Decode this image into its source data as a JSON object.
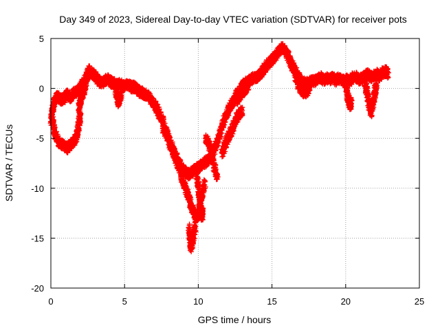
{
  "chart_data": {
    "type": "scatter",
    "title": "Day 349 of 2023, Sidereal Day-to-day VTEC variation (SDTVAR) for receiver pots",
    "xlabel": "GPS time / hours",
    "ylabel": "SDTVAR / TECUs",
    "xlim": [
      0,
      25
    ],
    "ylim": [
      -20,
      5
    ],
    "xticks": [
      "0",
      "5",
      "10",
      "15",
      "20",
      "25"
    ],
    "yticks": [
      "5",
      "0",
      "-5",
      "-10",
      "-15",
      "-20"
    ],
    "grid": true,
    "marker": "+",
    "series": [
      {
        "name": "SDTVAR",
        "color": "#ff0000",
        "trace": [
          [
            0.0,
            -3.2
          ],
          [
            0.1,
            -2.2
          ],
          [
            0.2,
            -1.6
          ],
          [
            0.3,
            -1.0
          ],
          [
            0.5,
            -0.8
          ],
          [
            0.7,
            -1.2
          ],
          [
            0.9,
            -1.0
          ],
          [
            1.1,
            -0.6
          ],
          [
            1.3,
            -0.9
          ],
          [
            1.5,
            -0.5
          ],
          [
            1.7,
            -0.4
          ],
          [
            1.9,
            -0.2
          ],
          [
            2.1,
            0.3
          ],
          [
            2.3,
            0.8
          ],
          [
            2.5,
            1.2
          ],
          [
            2.7,
            1.6
          ],
          [
            2.9,
            1.4
          ],
          [
            3.1,
            1.0
          ],
          [
            3.3,
            0.7
          ],
          [
            3.5,
            0.5
          ],
          [
            3.7,
            0.8
          ],
          [
            3.9,
            0.9
          ],
          [
            4.1,
            0.6
          ],
          [
            4.3,
            0.5
          ],
          [
            4.5,
            0.3
          ],
          [
            4.7,
            0.5
          ],
          [
            4.9,
            0.2
          ],
          [
            5.1,
            0.4
          ],
          [
            5.3,
            0.3
          ],
          [
            5.5,
            0.1
          ],
          [
            5.7,
            0.2
          ],
          [
            5.9,
            -0.2
          ],
          [
            6.1,
            -0.4
          ],
          [
            6.3,
            -0.5
          ],
          [
            6.5,
            -0.7
          ],
          [
            6.7,
            -0.9
          ],
          [
            6.9,
            -1.4
          ],
          [
            7.1,
            -1.8
          ],
          [
            7.3,
            -2.4
          ],
          [
            7.5,
            -3.0
          ],
          [
            7.7,
            -3.8
          ],
          [
            7.9,
            -4.6
          ],
          [
            8.1,
            -5.4
          ],
          [
            8.3,
            -6.2
          ],
          [
            8.5,
            -6.8
          ],
          [
            8.7,
            -7.4
          ],
          [
            8.9,
            -8.0
          ],
          [
            9.1,
            -8.3
          ],
          [
            9.3,
            -8.6
          ],
          [
            9.5,
            -8.5
          ],
          [
            9.7,
            -8.2
          ],
          [
            9.9,
            -8.0
          ],
          [
            10.1,
            -7.8
          ],
          [
            10.3,
            -7.6
          ],
          [
            10.5,
            -7.4
          ],
          [
            10.7,
            -7.1
          ],
          [
            10.9,
            -6.7
          ],
          [
            11.1,
            -6.1
          ],
          [
            11.3,
            -5.3
          ],
          [
            11.5,
            -4.4
          ],
          [
            11.7,
            -3.5
          ],
          [
            11.9,
            -2.7
          ],
          [
            12.1,
            -2.0
          ],
          [
            12.3,
            -1.5
          ],
          [
            12.5,
            -1.0
          ],
          [
            12.7,
            -0.4
          ],
          [
            12.9,
            0.0
          ],
          [
            13.1,
            0.4
          ],
          [
            13.3,
            0.6
          ],
          [
            13.5,
            0.8
          ],
          [
            13.7,
            1.0
          ],
          [
            13.9,
            1.1
          ],
          [
            14.1,
            1.3
          ],
          [
            14.3,
            1.6
          ],
          [
            14.5,
            2.0
          ],
          [
            14.7,
            2.4
          ],
          [
            14.9,
            2.7
          ],
          [
            15.1,
            3.0
          ],
          [
            15.3,
            3.4
          ],
          [
            15.5,
            3.8
          ],
          [
            15.7,
            4.1
          ],
          [
            15.9,
            3.8
          ],
          [
            16.1,
            3.2
          ],
          [
            16.3,
            2.5
          ],
          [
            16.5,
            1.9
          ],
          [
            16.7,
            1.4
          ],
          [
            16.9,
            0.9
          ],
          [
            17.1,
            0.6
          ],
          [
            17.3,
            0.5
          ],
          [
            17.5,
            0.6
          ],
          [
            17.7,
            0.8
          ],
          [
            17.9,
            0.7
          ],
          [
            18.1,
            0.9
          ],
          [
            18.3,
            1.1
          ],
          [
            18.5,
            0.8
          ],
          [
            18.7,
            1.0
          ],
          [
            18.9,
            0.9
          ],
          [
            19.1,
            1.1
          ],
          [
            19.3,
            0.8
          ],
          [
            19.5,
            1.0
          ],
          [
            19.7,
            0.9
          ],
          [
            19.9,
            0.7
          ],
          [
            20.1,
            0.9
          ],
          [
            20.3,
            0.8
          ],
          [
            20.5,
            1.1
          ],
          [
            20.7,
            1.2
          ],
          [
            20.9,
            0.9
          ],
          [
            21.1,
            1.0
          ],
          [
            21.3,
            1.2
          ],
          [
            21.5,
            1.4
          ],
          [
            21.7,
            1.1
          ],
          [
            21.9,
            1.3
          ],
          [
            22.1,
            1.5
          ],
          [
            22.3,
            1.2
          ],
          [
            22.5,
            1.6
          ],
          [
            22.7,
            1.7
          ],
          [
            22.9,
            1.5
          ]
        ],
        "branches": [
          [
            [
              0.05,
              -3.0
            ],
            [
              0.2,
              -3.8
            ],
            [
              0.35,
              -4.8
            ],
            [
              0.55,
              -5.4
            ],
            [
              0.75,
              -5.6
            ],
            [
              0.95,
              -5.8
            ],
            [
              1.15,
              -6.0
            ],
            [
              1.35,
              -5.6
            ],
            [
              1.55,
              -5.3
            ],
            [
              1.75,
              -4.8
            ],
            [
              1.85,
              -4.0
            ],
            [
              1.95,
              -3.2
            ],
            [
              2.0,
              -2.8
            ]
          ],
          [
            [
              1.9,
              -2.0
            ],
            [
              2.0,
              -1.2
            ],
            [
              2.1,
              -0.8
            ],
            [
              2.2,
              -0.4
            ],
            [
              2.3,
              0.2
            ],
            [
              2.4,
              0.9
            ],
            [
              2.5,
              1.6
            ],
            [
              2.6,
              2.2
            ]
          ],
          [
            [
              4.4,
              -0.2
            ],
            [
              4.5,
              -0.8
            ],
            [
              4.6,
              -1.4
            ],
            [
              4.7,
              -1.0
            ],
            [
              4.8,
              -0.5
            ]
          ],
          [
            [
              7.6,
              -4.0
            ],
            [
              7.9,
              -5.0
            ],
            [
              8.2,
              -6.0
            ],
            [
              8.5,
              -7.2
            ],
            [
              8.8,
              -8.4
            ],
            [
              9.0,
              -9.5
            ],
            [
              9.2,
              -10.3
            ],
            [
              9.4,
              -11.1
            ],
            [
              9.55,
              -11.9
            ],
            [
              9.7,
              -12.4
            ],
            [
              9.85,
              -13.0
            ],
            [
              10.0,
              -12.5
            ],
            [
              10.15,
              -11.5
            ],
            [
              10.3,
              -10.4
            ],
            [
              10.45,
              -9.5
            ]
          ],
          [
            [
              9.35,
              -14.0
            ],
            [
              9.45,
              -15.2
            ],
            [
              9.5,
              -16.0
            ],
            [
              9.6,
              -15.3
            ],
            [
              9.7,
              -14.6
            ],
            [
              9.8,
              -13.8
            ]
          ],
          [
            [
              9.9,
              -8.6
            ],
            [
              10.0,
              -9.8
            ],
            [
              10.1,
              -11.2
            ],
            [
              10.2,
              -12.4
            ],
            [
              10.25,
              -13.0
            ],
            [
              10.3,
              -12.2
            ]
          ],
          [
            [
              10.5,
              -5.0
            ],
            [
              10.7,
              -5.4
            ],
            [
              10.9,
              -6.6
            ],
            [
              11.1,
              -8.0
            ],
            [
              11.3,
              -9.0
            ]
          ],
          [
            [
              11.6,
              -6.5
            ],
            [
              11.8,
              -5.8
            ],
            [
              12.0,
              -5.0
            ],
            [
              12.2,
              -4.4
            ],
            [
              12.4,
              -3.7
            ],
            [
              12.6,
              -3.0
            ],
            [
              12.8,
              -2.5
            ],
            [
              13.0,
              -2.2
            ]
          ],
          [
            [
              12.6,
              -1.2
            ],
            [
              12.8,
              -0.8
            ],
            [
              13.0,
              -0.4
            ],
            [
              13.2,
              -0.1
            ],
            [
              13.4,
              0.3
            ]
          ],
          [
            [
              16.6,
              1.2
            ],
            [
              16.8,
              0.4
            ],
            [
              17.0,
              -0.2
            ],
            [
              17.2,
              -0.5
            ],
            [
              17.4,
              -0.2
            ],
            [
              17.6,
              0.2
            ]
          ],
          [
            [
              20.0,
              0.2
            ],
            [
              20.1,
              -0.5
            ],
            [
              20.2,
              -1.2
            ],
            [
              20.3,
              -1.8
            ],
            [
              20.4,
              -1.2
            ]
          ],
          [
            [
              21.3,
              0.8
            ],
            [
              21.4,
              0.0
            ],
            [
              21.5,
              -0.8
            ],
            [
              21.6,
              -1.6
            ],
            [
              21.7,
              -2.5
            ],
            [
              21.8,
              -1.8
            ],
            [
              21.9,
              -1.0
            ],
            [
              22.0,
              -0.2
            ],
            [
              22.1,
              0.6
            ]
          ]
        ]
      }
    ]
  }
}
